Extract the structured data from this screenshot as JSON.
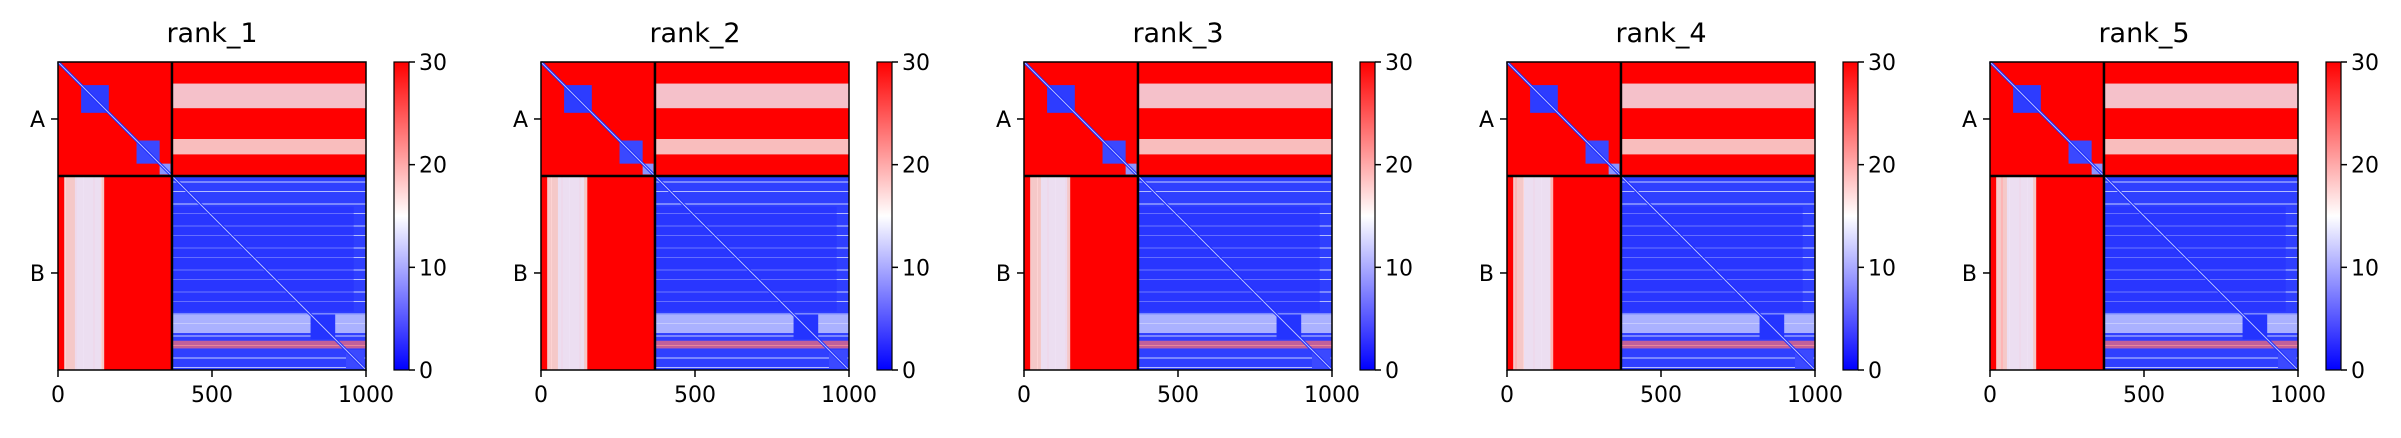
{
  "chart_data": [
    {
      "type": "heatmap",
      "title": "rank_1",
      "row_labels": [
        "A",
        "B"
      ],
      "chain_boundary": 370,
      "x_ticks": [
        0,
        500,
        1000
      ],
      "x_range": [
        0,
        1000
      ],
      "colorbar": {
        "range": [
          0,
          30
        ],
        "ticks": [
          0,
          10,
          20,
          30
        ],
        "colors": [
          "#0000ff",
          "#ffffff",
          "#ff0000"
        ]
      }
    },
    {
      "type": "heatmap",
      "title": "rank_2",
      "row_labels": [
        "A",
        "B"
      ],
      "chain_boundary": 370,
      "x_ticks": [
        0,
        500,
        1000
      ],
      "x_range": [
        0,
        1000
      ],
      "colorbar": {
        "range": [
          0,
          30
        ],
        "ticks": [
          0,
          10,
          20,
          30
        ],
        "colors": [
          "#0000ff",
          "#ffffff",
          "#ff0000"
        ]
      }
    },
    {
      "type": "heatmap",
      "title": "rank_3",
      "row_labels": [
        "A",
        "B"
      ],
      "chain_boundary": 370,
      "x_ticks": [
        0,
        500,
        1000
      ],
      "x_range": [
        0,
        1000
      ],
      "colorbar": {
        "range": [
          0,
          30
        ],
        "ticks": [
          0,
          10,
          20,
          30
        ],
        "colors": [
          "#0000ff",
          "#ffffff",
          "#ff0000"
        ]
      }
    },
    {
      "type": "heatmap",
      "title": "rank_4",
      "row_labels": [
        "A",
        "B"
      ],
      "chain_boundary": 370,
      "x_ticks": [
        0,
        500,
        1000
      ],
      "x_range": [
        0,
        1000
      ],
      "colorbar": {
        "range": [
          0,
          30
        ],
        "ticks": [
          0,
          10,
          20,
          30
        ],
        "colors": [
          "#0000ff",
          "#ffffff",
          "#ff0000"
        ]
      }
    },
    {
      "type": "heatmap",
      "title": "rank_5",
      "row_labels": [
        "A",
        "B"
      ],
      "chain_boundary": 370,
      "x_ticks": [
        0,
        500,
        1000
      ],
      "x_range": [
        0,
        1000
      ],
      "colorbar": {
        "range": [
          0,
          30
        ],
        "ticks": [
          0,
          10,
          20,
          30
        ],
        "colors": [
          "#0000ff",
          "#ffffff",
          "#ff0000"
        ]
      }
    }
  ]
}
